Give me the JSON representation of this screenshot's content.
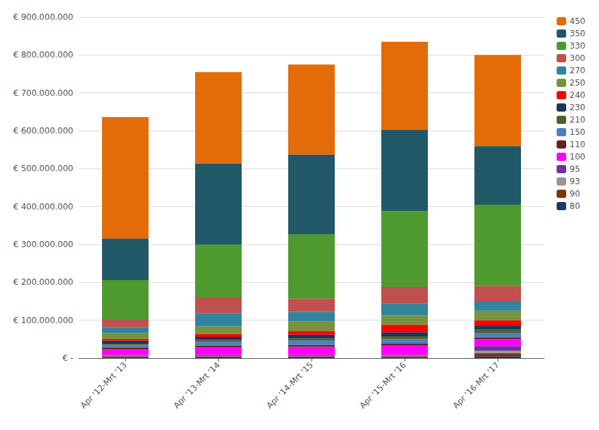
{
  "chart_data": {
    "type": "bar",
    "stacked": true,
    "grid": true,
    "legend": "right",
    "categories": [
      "Apr '12-Mrt '13",
      "Apr '13-Mrt '14",
      "Apr '14-Mrt '15",
      "Apr '15-Mrt '16",
      "Apr '16-Mrt '17"
    ],
    "series": [
      {
        "name": "80",
        "color": "#203864",
        "values": [
          3000000,
          2000000,
          2000000,
          3000000,
          5000000
        ]
      },
      {
        "name": "90",
        "color": "#833200",
        "values": [
          2000000,
          2000000,
          2000000,
          2000000,
          8000000
        ]
      },
      {
        "name": "93",
        "color": "#969696",
        "values": [
          1000000,
          1000000,
          1000000,
          1000000,
          7000000
        ]
      },
      {
        "name": "95",
        "color": "#7030a0",
        "values": [
          2000000,
          3000000,
          3000000,
          2000000,
          12000000
        ]
      },
      {
        "name": "100",
        "color": "#ff00ff",
        "values": [
          15000000,
          20000000,
          22000000,
          25000000,
          18000000
        ]
      },
      {
        "name": "110",
        "color": "#632523",
        "values": [
          4000000,
          5000000,
          5000000,
          5000000,
          5000000
        ]
      },
      {
        "name": "150",
        "color": "#4f81bd",
        "values": [
          8000000,
          10000000,
          12000000,
          12000000,
          12000000
        ]
      },
      {
        "name": "210",
        "color": "#4f6228",
        "values": [
          3000000,
          5000000,
          5000000,
          8000000,
          8000000
        ]
      },
      {
        "name": "230",
        "color": "#17375e",
        "values": [
          8000000,
          8000000,
          10000000,
          10000000,
          10000000
        ]
      },
      {
        "name": "240",
        "color": "#ff0000",
        "values": [
          5000000,
          8000000,
          10000000,
          20000000,
          15000000
        ]
      },
      {
        "name": "250",
        "color": "#76923c",
        "values": [
          15000000,
          20000000,
          25000000,
          25000000,
          25000000
        ]
      },
      {
        "name": "270",
        "color": "#31849b",
        "values": [
          15000000,
          35000000,
          25000000,
          30000000,
          25000000
        ]
      },
      {
        "name": "300",
        "color": "#c0504d",
        "values": [
          20000000,
          40000000,
          35000000,
          45000000,
          40000000
        ]
      },
      {
        "name": "330",
        "color": "#4e9a2f",
        "values": [
          105000000,
          140000000,
          170000000,
          200000000,
          215000000
        ]
      },
      {
        "name": "350",
        "color": "#215868",
        "values": [
          110000000,
          215000000,
          210000000,
          215000000,
          155000000
        ]
      },
      {
        "name": "450",
        "color": "#e36c09",
        "values": [
          320000000,
          241000000,
          238000000,
          232000000,
          240000000
        ]
      }
    ],
    "ylim": [
      0,
      900000000
    ],
    "yticks": [
      {
        "value": 0,
        "label": "€ -"
      },
      {
        "value": 100000000,
        "label": "€ 100.000.000"
      },
      {
        "value": 200000000,
        "label": "€ 200.000.000"
      },
      {
        "value": 300000000,
        "label": "€ 300.000.000"
      },
      {
        "value": 400000000,
        "label": "€ 400.000.000"
      },
      {
        "value": 500000000,
        "label": "€ 500.000.000"
      },
      {
        "value": 600000000,
        "label": "€ 600.000.000"
      },
      {
        "value": 700000000,
        "label": "€ 700.000.000"
      },
      {
        "value": 800000000,
        "label": "€ 800.000.000"
      },
      {
        "value": 900000000,
        "label": "€ 900.000.000"
      }
    ]
  }
}
